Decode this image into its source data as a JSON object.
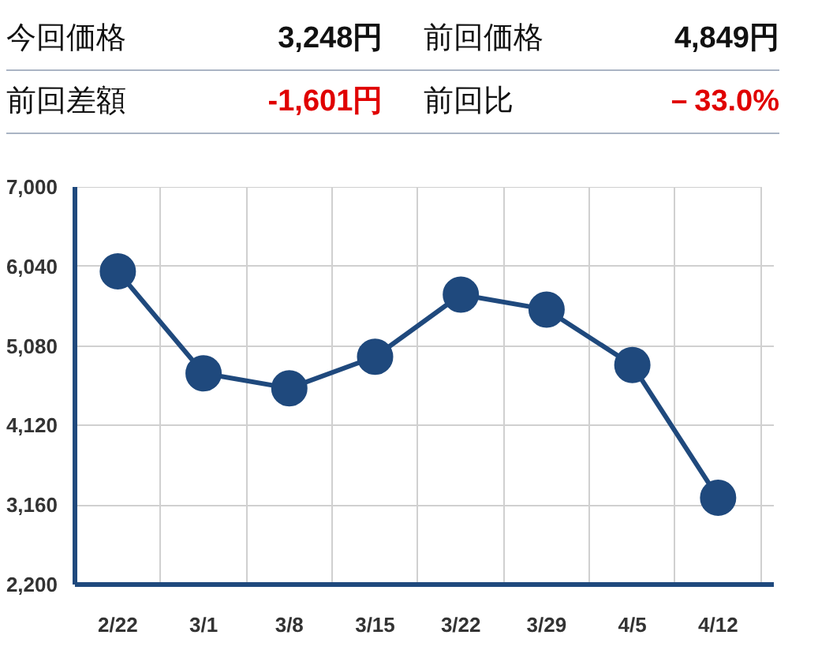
{
  "chart_data": {
    "type": "line",
    "annotations": [
      "今回価格",
      "3,248円",
      "前回価格",
      "4,849円",
      "前回差額",
      "-1,601円",
      "前回比",
      "－33.0%"
    ],
    "categories": [
      "2/22",
      "3/1",
      "3/8",
      "3/15",
      "3/22",
      "3/29",
      "4/5",
      "4/12"
    ],
    "series": [
      {
        "color": "#1f497d",
        "values": [
          5980,
          4750,
          4570,
          4950,
          5700,
          5520,
          4849,
          3248
        ]
      }
    ],
    "ylim": [
      2200,
      7000
    ],
    "yticks": [
      {
        "value": 2200,
        "label": "2,200"
      },
      {
        "value": 3160,
        "label": "3,160"
      },
      {
        "value": 4120,
        "label": "4,120"
      },
      {
        "value": 5080,
        "label": "5,080"
      },
      {
        "value": 6040,
        "label": "6,040"
      },
      {
        "value": 7000,
        "label": "7,000"
      }
    ],
    "grid": true,
    "marker": "circle",
    "line_style": "solid"
  }
}
